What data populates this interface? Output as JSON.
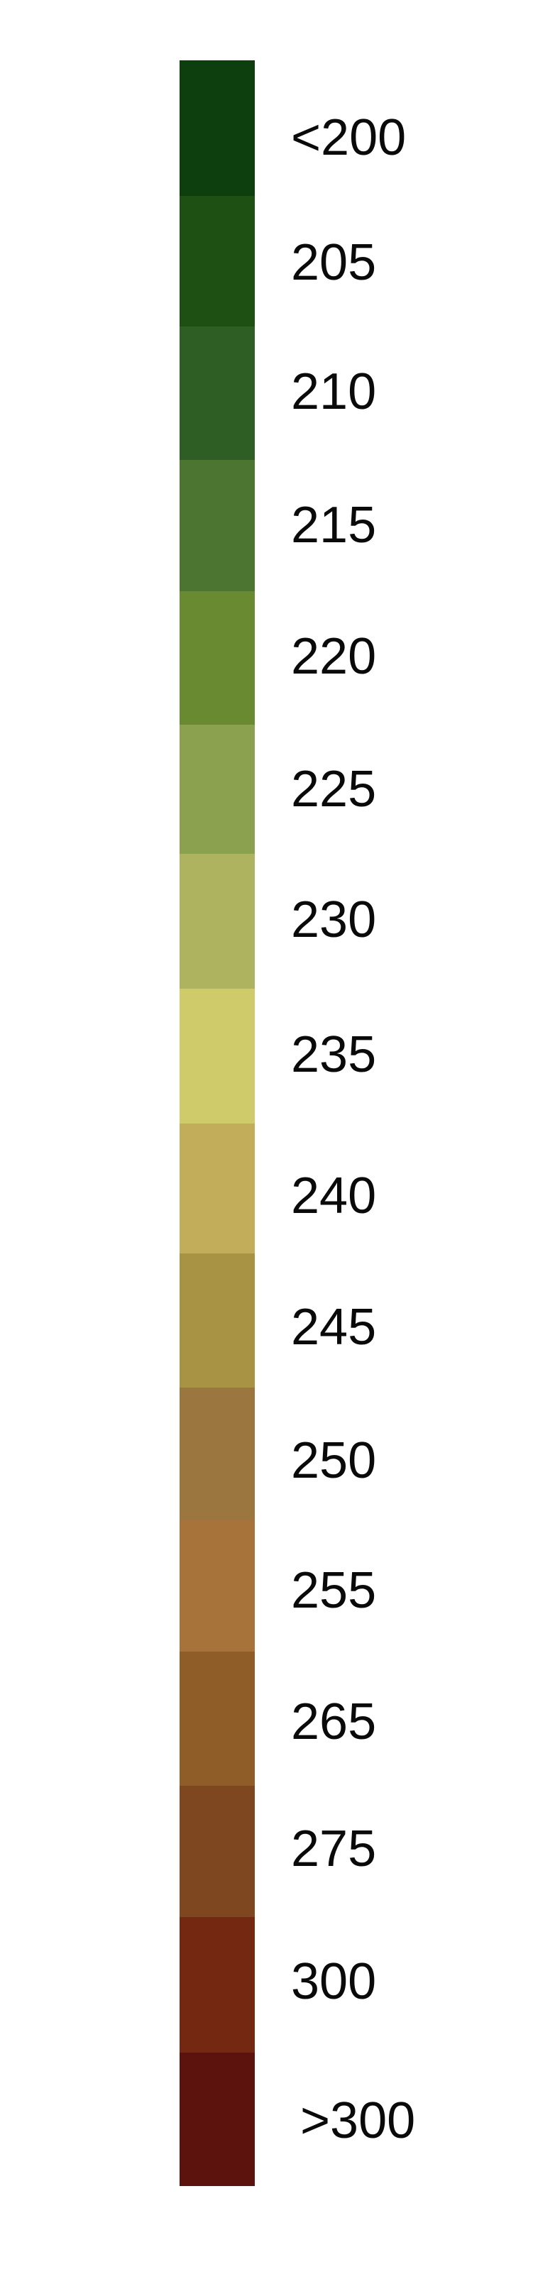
{
  "chart_data": {
    "type": "legend",
    "title": "",
    "orientation": "vertical",
    "labels": [
      "<200",
      "205",
      "210",
      "215",
      "220",
      "225",
      "230",
      "235",
      "240",
      "245",
      "250",
      "255",
      "265",
      "275",
      "300",
      ">300"
    ],
    "colors": [
      "#0d3f0e",
      "#1e5014",
      "#2e5e23",
      "#4c7531",
      "#6a8a31",
      "#8ba150",
      "#adb35f",
      "#cfcb6a",
      "#c2ad5a",
      "#a89345",
      "#9b763f",
      "#a7733b",
      "#8e5d28",
      "#7e471f",
      "#752811",
      "#5c130d"
    ]
  }
}
